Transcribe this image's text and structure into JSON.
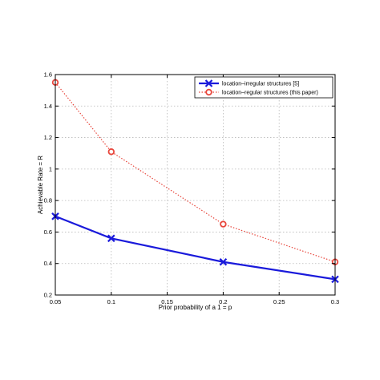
{
  "chart_data": {
    "type": "line",
    "xlabel": "Prior probability of a 1 = p",
    "ylabel": "Achievable Rate = R",
    "xlim": [
      0.05,
      0.3
    ],
    "ylim": [
      0.2,
      1.6
    ],
    "xticks": [
      0.05,
      0.1,
      0.15,
      0.2,
      0.25,
      0.3
    ],
    "yticks": [
      0.2,
      0.4,
      0.6,
      0.8,
      1,
      1.2,
      1.4,
      1.6
    ],
    "xtick_labels": [
      "0.05",
      "0.1",
      "0.15",
      "0.2",
      "0.25",
      "0.3"
    ],
    "ytick_labels": [
      "0.2",
      "0.4",
      "0.6",
      "0.8",
      "1",
      "1.2",
      "1.4",
      "1.6"
    ],
    "grid": true,
    "legend_position": "top-right",
    "series": [
      {
        "name": "location–irregular structures [5]",
        "x": [
          0.05,
          0.1,
          0.2,
          0.3
        ],
        "y": [
          0.7,
          0.56,
          0.41,
          0.3
        ],
        "color": "#1a1adb",
        "line_style": "solid",
        "marker": "x"
      },
      {
        "name": "location–regular structures (this paper)",
        "x": [
          0.05,
          0.1,
          0.2,
          0.3
        ],
        "y": [
          1.55,
          1.11,
          0.65,
          0.41
        ],
        "color": "#e8463c",
        "line_style": "dotted",
        "marker": "o"
      }
    ]
  }
}
